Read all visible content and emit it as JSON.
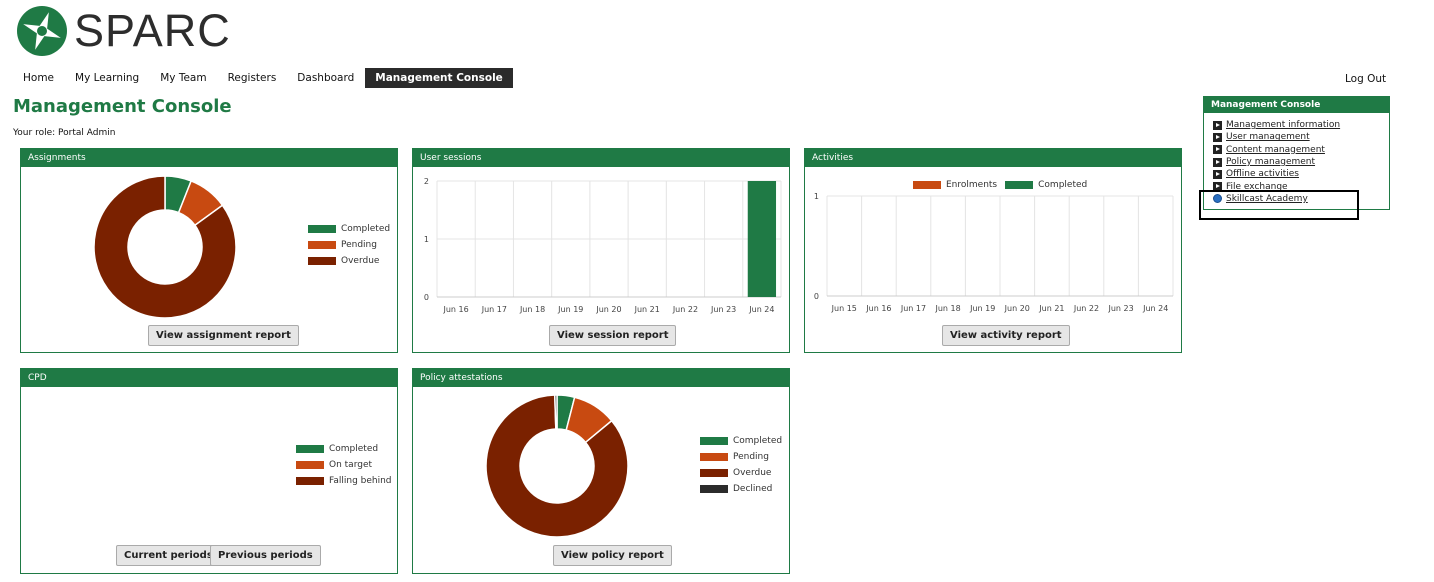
{
  "brand": {
    "name": "SPARC",
    "color": "#1f7a45"
  },
  "nav": {
    "items": [
      "Home",
      "My Learning",
      "My Team",
      "Registers",
      "Dashboard",
      "Management Console"
    ],
    "active": "Management Console",
    "logout": "Log Out"
  },
  "page": {
    "title": "Management Console",
    "role": "Your role: Portal Admin"
  },
  "colors": {
    "completed": "#1f7a45",
    "pending": "#c84a11",
    "overdue": "#7a2100",
    "declined": "#2b2b2b"
  },
  "panels": {
    "assignments": {
      "title": "Assignments",
      "legend": [
        "Completed",
        "Pending",
        "Overdue"
      ],
      "button": "View assignment report"
    },
    "sessions": {
      "title": "User sessions",
      "button": "View session report"
    },
    "activities": {
      "title": "Activities",
      "legend": [
        "Enrolments",
        "Completed"
      ],
      "button": "View activity report"
    },
    "cpd": {
      "title": "CPD",
      "legend": [
        "Completed",
        "On target",
        "Falling behind"
      ],
      "buttons": [
        "Current periods",
        "Previous periods"
      ]
    },
    "policy": {
      "title": "Policy attestations",
      "legend": [
        "Completed",
        "Pending",
        "Overdue",
        "Declined"
      ],
      "button": "View policy report"
    }
  },
  "sidebar": {
    "title": "Management Console",
    "items": [
      "Management information",
      "User management",
      "Content management",
      "Policy management",
      "Offline activities",
      "File exchange",
      "Skillcast Academy"
    ]
  },
  "chart_data": [
    {
      "type": "pie",
      "title": "Assignments",
      "labels": [
        "Completed",
        "Pending",
        "Overdue"
      ],
      "values": [
        6,
        9,
        85
      ]
    },
    {
      "type": "bar",
      "title": "User sessions",
      "categories": [
        "Jun 16",
        "Jun 17",
        "Jun 18",
        "Jun 19",
        "Jun 20",
        "Jun 21",
        "Jun 22",
        "Jun 23",
        "Jun 24"
      ],
      "values": [
        0,
        0,
        0,
        0,
        0,
        0,
        0,
        0,
        2
      ],
      "yticks": [
        "0",
        "1",
        "2"
      ],
      "ylim": [
        0,
        2
      ]
    },
    {
      "type": "bar",
      "title": "Activities",
      "categories": [
        "Jun 15",
        "Jun 16",
        "Jun 17",
        "Jun 18",
        "Jun 19",
        "Jun 20",
        "Jun 21",
        "Jun 22",
        "Jun 23",
        "Jun 24"
      ],
      "series": [
        {
          "name": "Enrolments",
          "values": [
            0,
            0,
            0,
            0,
            0,
            0,
            0,
            0,
            0,
            0
          ]
        },
        {
          "name": "Completed",
          "values": [
            0,
            0,
            0,
            0,
            0,
            0,
            0,
            0,
            0,
            0
          ]
        }
      ],
      "yticks": [
        "0",
        "1"
      ],
      "ylim": [
        0,
        1
      ]
    },
    {
      "type": "pie",
      "title": "Policy attestations",
      "labels": [
        "Completed",
        "Pending",
        "Overdue",
        "Declined"
      ],
      "values": [
        4,
        10,
        85.5,
        0.5
      ]
    }
  ]
}
